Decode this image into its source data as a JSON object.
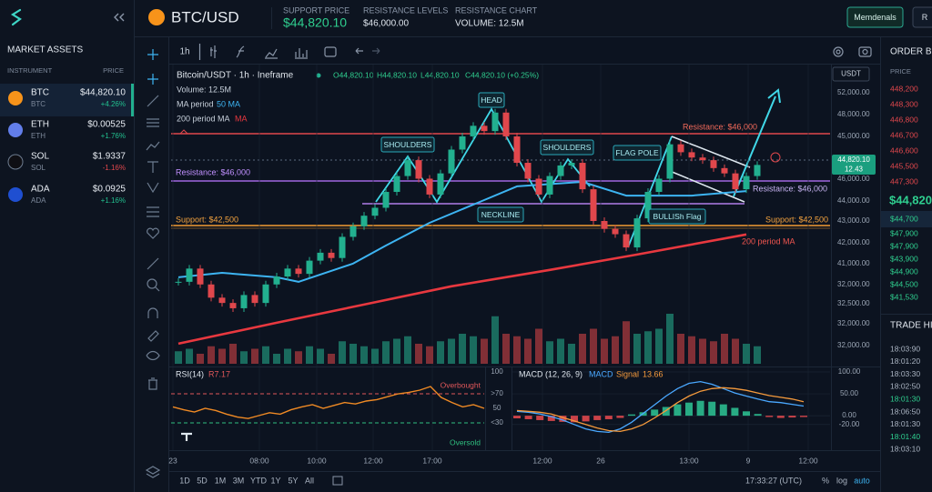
{
  "header": {
    "symbol": "BTC/USD",
    "stats": [
      {
        "label": "SUPPORT PRICE",
        "value": "$44,820.10"
      },
      {
        "label": "RESISTANCE LEVELS",
        "value": "$46,000.00"
      },
      {
        "label": "RESISTANCE CHART",
        "value": "VOLUME: 12.5M"
      }
    ],
    "buttons": [
      "Memdenals",
      "R"
    ]
  },
  "sidebar": {
    "title": "MARKET ASSETS",
    "columns": [
      "INSTRUMENT",
      "PRICE"
    ],
    "assets": [
      {
        "symbol": "BTC",
        "name": "BTC",
        "price": "$44,820.10",
        "change": "+4.26%"
      },
      {
        "symbol": "ETH",
        "name": "ETH",
        "price": "$0.00525",
        "change": "+1.76%"
      },
      {
        "symbol": "SOL",
        "name": "SOL",
        "price": "$1.9337",
        "change": "-1.16%"
      },
      {
        "symbol": "ADA",
        "name": "ADA",
        "price": "$0.0925",
        "change": "+1.16%"
      }
    ]
  },
  "toolbar": {
    "interval": "1h",
    "ranges": [
      "1D",
      "5D",
      "1M",
      "3M",
      "YTD",
      "1Y",
      "5Y",
      "All"
    ],
    "clock": "17:33:27 (UTC)",
    "options": [
      "%",
      "log",
      "auto"
    ]
  },
  "chart": {
    "legend": {
      "pair": "Bitcoin/USDT · 1h · Ineframe",
      "open": "O44,820.10",
      "high": "H44,820.10",
      "low": "L44,820.10",
      "close": "C44,820.10 (+0.25%)",
      "volume": "Volume:  12.5M",
      "ma50_label": "MA period",
      "ma200_suffix": "MA"
    },
    "currency": "USDT",
    "price_labels": [
      "52,000.00",
      "48,000.00",
      "45,000.00",
      "46,000.00",
      "44,000.00",
      "43,000.00",
      "42,000.00",
      "41,000.00",
      "32,000.00",
      "32,500.00",
      "32,000.00",
      "32,000.00"
    ],
    "current_price": "44,820.10",
    "countdown": "12.43",
    "annotations": [
      "HEAD",
      "SHOULDERS",
      "SHOULDERS",
      "NECKLINE",
      "FLAG POLE",
      "BULLISh Flag"
    ],
    "level_labels": [
      "Resistance: $46,000",
      "Resistance: $46,000",
      "Resistance: $46,000",
      "Support: $42,500",
      "Support: $42,500",
      "200 period MA"
    ],
    "time_labels": [
      "23",
      "08:00",
      "10:00",
      "12:00",
      "17:00",
      "12:00",
      "26",
      "13:00",
      "9",
      "12:00"
    ]
  },
  "order_book": {
    "title": "ORDER BOO",
    "column": "PRICE",
    "asks": [
      "448,200",
      "448,300",
      "446,800",
      "446,700",
      "446,600",
      "445,500",
      "447,300"
    ],
    "last": "$44,820",
    "mark": "$44,700",
    "bids": [
      "$47,900",
      "$47,900",
      "$43,900",
      "$44,900",
      "$44,500",
      "$41,530"
    ]
  },
  "trade_history": {
    "title": "TRADE HIS",
    "times": [
      "18:03:90",
      "18:01:20",
      "18:03:30",
      "18:02:50",
      "18:01:30",
      "18:06:50",
      "18:01:30",
      "18:01:40",
      "18:03:10"
    ]
  },
  "chart_data": [
    {
      "type": "candlestick",
      "values": [
        40400,
        40900,
        40300,
        39800,
        39600,
        39400,
        39900,
        39600,
        40300,
        40600,
        40900,
        40700,
        41200,
        41500,
        41300,
        42100,
        42500,
        42900,
        43200,
        43800,
        44400,
        45000,
        44300,
        43700,
        44500,
        45400,
        45900,
        46300,
        46100,
        46800,
        45900,
        44900,
        44300,
        43700,
        44400,
        44800,
        44900,
        43900,
        42700,
        42400,
        42200,
        41700,
        42800,
        43800,
        44300,
        45600,
        45300,
        45100,
        45000,
        44700,
        44500,
        43900,
        44400,
        44820
      ],
      "ylim": [
        37300,
        48650
      ],
      "colors": {
        "up": "#22b08f",
        "down": "#e0474c"
      },
      "series": [
        {
          "name": "50 MA",
          "color": "#3db4f2",
          "x": [
            0,
            4,
            9,
            11,
            16,
            19,
            23,
            27,
            31,
            37,
            41,
            47,
            52
          ],
          "values": [
            40570,
            40740,
            40570,
            40400,
            41090,
            41770,
            42630,
            43320,
            44010,
            44180,
            43660,
            43660,
            43830
          ]
        },
        {
          "name": "200 period MA",
          "color": "#e8383f",
          "x": [
            0,
            9,
            17,
            25,
            34,
            42,
            52
          ],
          "values": [
            38060,
            38850,
            39540,
            40230,
            40850,
            41430,
            42190
          ]
        }
      ]
    },
    {
      "type": "bar",
      "values": [
        0.25,
        0.3,
        0.2,
        0.35,
        0.3,
        0.4,
        0.25,
        0.3,
        0.35,
        0.2,
        0.3,
        0.25,
        0.35,
        0.3,
        0.2,
        0.45,
        0.4,
        0.35,
        0.3,
        0.45,
        0.5,
        0.55,
        0.4,
        0.35,
        0.45,
        0.5,
        0.6,
        0.55,
        0.5,
        0.95,
        0.6,
        0.55,
        0.5,
        0.7,
        0.45,
        0.5,
        0.4,
        0.6,
        0.7,
        0.5,
        0.55,
        0.85,
        0.6,
        0.65,
        0.7,
        1.0,
        0.6,
        0.55,
        0.5,
        0.45,
        0.6,
        0.5,
        0.4,
        0.35
      ],
      "ylim": [
        0,
        1
      ],
      "colors": {
        "up": "#1f8a73",
        "down": "#a8393d"
      }
    },
    {
      "type": "line",
      "title": "RSI(14)",
      "value_label": "R7.17",
      "color": "#f08a24",
      "values": [
        52,
        48,
        45,
        50,
        47,
        42,
        38,
        36,
        40,
        44,
        42,
        48,
        52,
        55,
        50,
        54,
        58,
        56,
        60,
        62,
        66,
        70,
        72,
        75,
        80,
        65,
        58,
        52,
        55,
        50
      ],
      "ylim": [
        0,
        100
      ],
      "yticks": [
        100,
        {
          "value": 70,
          "label": ">70"
        },
        50,
        {
          "value": 30,
          "label": "<30"
        }
      ],
      "annotations": [
        "Overbought",
        "Oversold"
      ]
    },
    {
      "type": "macd",
      "title": "MACD (12, 26, 9)",
      "value_label": "13.66",
      "histogram": [
        -6,
        -8,
        -10,
        -12,
        -14,
        -15,
        -13,
        -10,
        -8,
        -5,
        3,
        8,
        14,
        20,
        26,
        30,
        34,
        32,
        26,
        18,
        10,
        4,
        -3,
        -5,
        -4,
        -3
      ],
      "colors": {
        "up": "#2bbd8f",
        "down": "#e0484c"
      },
      "series": [
        {
          "name": "MACD",
          "color": "#4aa8ff",
          "values": [
            10,
            8,
            4,
            -2,
            -10,
            -20,
            -30,
            -36,
            -38,
            -30,
            -15,
            5,
            25,
            45,
            62,
            74,
            78,
            72,
            62,
            52,
            45,
            38,
            32,
            30,
            26,
            22
          ]
        },
        {
          "name": "Signal",
          "color": "#f59a3c",
          "values": [
            12,
            10,
            8,
            4,
            -4,
            -12,
            -20,
            -28,
            -34,
            -36,
            -30,
            -20,
            -5,
            12,
            30,
            45,
            56,
            62,
            64,
            62,
            58,
            52,
            46,
            42,
            38,
            32
          ]
        }
      ],
      "ylim": [
        -60,
        100
      ],
      "yticks": [
        {
          "value": 100,
          "label": "100.00"
        },
        {
          "value": 50,
          "label": "50.00"
        },
        {
          "value": 0,
          "label": "0.00"
        },
        {
          "value": -20,
          "label": "-20.00"
        }
      ]
    }
  ]
}
